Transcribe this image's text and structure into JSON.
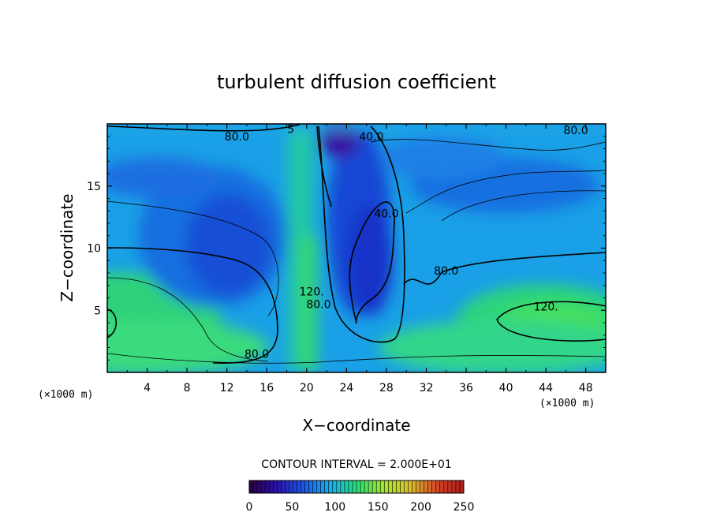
{
  "chart_data": {
    "type": "heatmap",
    "title": "turbulent diffusion coefficient",
    "xlabel": "X−coordinate",
    "ylabel": "Z−coordinate",
    "x_unit_left": "(×1000 m)",
    "x_unit_right": "(×1000 m)",
    "xlim": [
      0,
      50
    ],
    "ylim": [
      0,
      20
    ],
    "xticks": [
      4,
      8,
      12,
      16,
      20,
      24,
      28,
      32,
      36,
      40,
      44,
      48
    ],
    "yticks": [
      5,
      10,
      15
    ],
    "contour_interval_text": "CONTOUR INTERVAL = 2.000E+01",
    "contour_interval": 20,
    "contour_labels": [
      {
        "text": "80.0",
        "x": 13.0,
        "z": 19.0
      },
      {
        "text": "40.0",
        "x": 26.5,
        "z": 19.0
      },
      {
        "text": "80.0",
        "x": 47.0,
        "z": 19.5
      },
      {
        "text": "40.0",
        "x": 28.0,
        "z": 12.8
      },
      {
        "text": "80.0",
        "x": 34.0,
        "z": 8.2
      },
      {
        "text": "120.",
        "x": 20.5,
        "z": 6.5
      },
      {
        "text": "80.0",
        "x": 21.2,
        "z": 5.5
      },
      {
        "text": "120.",
        "x": 44.0,
        "z": 5.3
      },
      {
        "text": "80.0",
        "x": 15.0,
        "z": 1.5
      },
      {
        "text": "5",
        "x": 18.4,
        "z": 19.6
      }
    ],
    "colorbar": {
      "min": 0,
      "max": 250,
      "ticks": [
        0,
        50,
        100,
        150,
        200,
        250
      ],
      "colors": [
        "#2a003c",
        "#2a12a8",
        "#1d54e6",
        "#16b0ef",
        "#28dc7a",
        "#a4e82c",
        "#dcc02c",
        "#d64628",
        "#b01c1c"
      ]
    }
  }
}
